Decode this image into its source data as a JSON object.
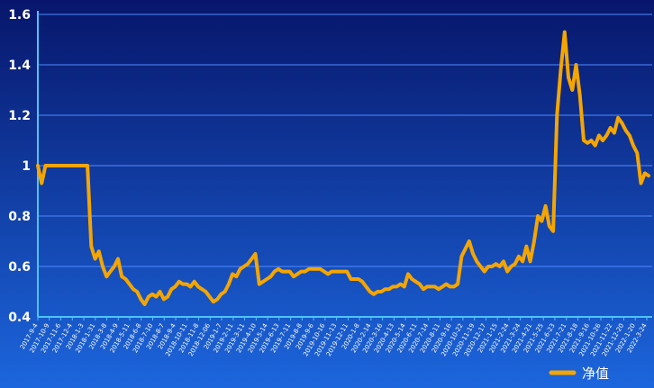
{
  "chart_data": {
    "type": "line",
    "title": "",
    "xlabel": "",
    "ylabel": "",
    "ylim": [
      0.4,
      1.6
    ],
    "y_ticks": [
      "0.4",
      "0.6",
      "0.8",
      "1",
      "1.2",
      "1.4",
      "1.6"
    ],
    "x_ticks": [
      "2017-9-4",
      "2017-10-9",
      "2017-11-6",
      "2017-12-4",
      "2018-1-3",
      "2018-1-31",
      "2018-3-8",
      "2018-4-9",
      "2018-5-11",
      "2018-6-8",
      "2018-7-10",
      "2018-8-7",
      "2018-9-4",
      "2018-10-11",
      "2018-11-8",
      "2018-12-06",
      "2019-1-7",
      "2019-2-11",
      "2019-3-11",
      "2019-4-10",
      "2019-5-14",
      "2019-6-13",
      "2019-7-11",
      "2019-8-8",
      "2019-9-6",
      "2019-10-16",
      "2019-11-13",
      "2019-12-11",
      "2020-1-8",
      "2020-2-14",
      "2020-3-16",
      "2020-4-13",
      "2020-5-14",
      "2020-6-11",
      "2020-7-14",
      "2020-8-11",
      "2020-9-16",
      "2020-10-22",
      "2020-11-19",
      "2020-12-17",
      "2021-1-15",
      "2021-2-24",
      "2021-3-24",
      "2021-4-21",
      "2021-5-25",
      "2021-6-23",
      "2021-7-21",
      "2021-8-18",
      "2021-9-16",
      "2021-10-26",
      "2021-11-22",
      "2021-12-20",
      "2022-1-20",
      "2022-3-24"
    ],
    "series": [
      {
        "name": "净值",
        "color": "#f5a500",
        "values": [
          1.0,
          0.93,
          1.0,
          1.0,
          1.0,
          1.0,
          1.0,
          1.0,
          1.0,
          1.0,
          1.0,
          1.0,
          1.0,
          1.0,
          0.68,
          0.63,
          0.66,
          0.6,
          0.56,
          0.58,
          0.6,
          0.63,
          0.56,
          0.55,
          0.53,
          0.51,
          0.5,
          0.47,
          0.45,
          0.48,
          0.49,
          0.48,
          0.5,
          0.47,
          0.48,
          0.51,
          0.52,
          0.54,
          0.53,
          0.53,
          0.52,
          0.54,
          0.52,
          0.51,
          0.5,
          0.48,
          0.46,
          0.47,
          0.49,
          0.5,
          0.53,
          0.57,
          0.56,
          0.59,
          0.6,
          0.61,
          0.63,
          0.65,
          0.53,
          0.54,
          0.55,
          0.56,
          0.58,
          0.59,
          0.58,
          0.58,
          0.58,
          0.56,
          0.57,
          0.58,
          0.58,
          0.59,
          0.59,
          0.59,
          0.59,
          0.58,
          0.57,
          0.58,
          0.58,
          0.58,
          0.58,
          0.58,
          0.55,
          0.55,
          0.55,
          0.54,
          0.52,
          0.5,
          0.49,
          0.5,
          0.5,
          0.51,
          0.51,
          0.52,
          0.52,
          0.53,
          0.52,
          0.57,
          0.55,
          0.54,
          0.53,
          0.51,
          0.52,
          0.52,
          0.52,
          0.51,
          0.52,
          0.53,
          0.52,
          0.52,
          0.53,
          0.64,
          0.67,
          0.7,
          0.65,
          0.62,
          0.6,
          0.58,
          0.6,
          0.6,
          0.61,
          0.6,
          0.62,
          0.58,
          0.6,
          0.61,
          0.64,
          0.62,
          0.68,
          0.62,
          0.7,
          0.8,
          0.78,
          0.84,
          0.76,
          0.74,
          1.2,
          1.38,
          1.53,
          1.35,
          1.3,
          1.4,
          1.28,
          1.1,
          1.09,
          1.1,
          1.08,
          1.12,
          1.1,
          1.12,
          1.15,
          1.13,
          1.19,
          1.17,
          1.14,
          1.12,
          1.08,
          1.05,
          0.93,
          0.97,
          0.96
        ]
      }
    ],
    "legend": {
      "position": "bottom-right",
      "label": "净值"
    },
    "grid": {
      "horizontal": true,
      "vertical": false
    },
    "colors": {
      "background_top": "#07166b",
      "background_bottom": "#1c66dd",
      "grid": "#4f8bff",
      "axis": "#4fc3f7",
      "text": "#ffffff",
      "line": "#f5a500"
    }
  }
}
